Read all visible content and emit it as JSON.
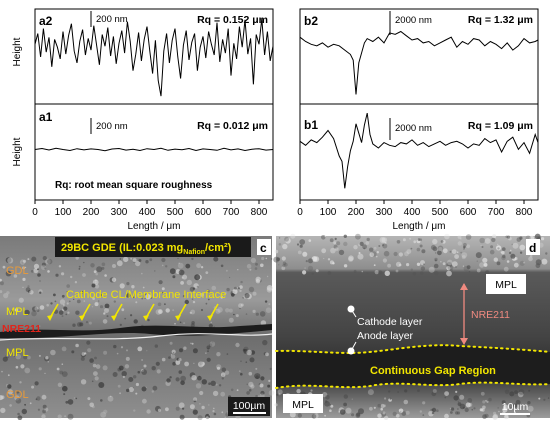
{
  "chart_data": [
    {
      "type": "line",
      "panels": [
        {
          "label": "a2",
          "rq": "Rq = 0.152 μm",
          "scale_bar": "200 nm",
          "x": [
            0,
            10,
            20,
            30,
            40,
            50,
            60,
            70,
            80,
            90,
            100,
            110,
            120,
            130,
            140,
            150,
            160,
            170,
            180,
            190,
            200,
            210,
            220,
            230,
            240,
            250,
            260,
            270,
            280,
            290,
            300,
            310,
            320,
            330,
            340,
            350,
            360,
            370,
            380,
            390,
            400,
            410,
            420,
            430,
            440,
            450,
            460,
            470,
            480,
            490,
            500,
            510,
            520,
            530,
            540,
            550,
            560,
            570,
            580,
            590,
            600,
            610,
            620,
            630,
            640,
            650,
            660,
            670,
            680,
            690,
            700,
            710,
            720,
            730,
            740,
            750,
            760,
            770,
            780,
            790,
            800,
            810,
            820,
            830,
            840,
            850
          ],
          "y": [
            0.05,
            0.16,
            -0.08,
            0.21,
            -0.03,
            0.12,
            -0.18,
            0.1,
            0.02,
            -0.1,
            0.18,
            -0.05,
            0.14,
            0.26,
            -0.02,
            -0.14,
            0.08,
            0.2,
            -0.06,
            0.11,
            -0.01,
            0.24,
            0.04,
            -0.16,
            0.15,
            0.03,
            0.22,
            -0.07,
            0.13,
            -0.15,
            0.06,
            0.19,
            -0.04,
            0.28,
            0.08,
            -0.22,
            -0.05,
            0.17,
            -0.12,
            0.1,
            0.23,
            -0.02,
            -0.25,
            0.09,
            -0.32,
            -0.48,
            -0.02,
            0.16,
            -0.14,
            0.09,
            0.21,
            -0.08,
            -0.3,
            0.04,
            0.19,
            -0.11,
            0.07,
            0.16,
            -0.22,
            0.02,
            0.13,
            -0.09,
            0.18,
            0.05,
            -0.06,
            0.27,
            -0.13,
            0.1,
            -0.04,
            0.21,
            -0.27,
            0.06,
            -0.1,
            0.23,
            0.02,
            0.3,
            -0.05,
            0.11,
            -0.36,
            0.15,
            0.05,
            0.31,
            -0.06,
            0.18,
            -0.12,
            0.03
          ],
          "ylim": [
            -0.55,
            0.4
          ]
        },
        {
          "label": "a1",
          "rq": "Rq = 0.012 μm",
          "scale_bar": "200 nm",
          "note": "Rq: root mean square roughness",
          "x": [
            0,
            25,
            50,
            75,
            100,
            125,
            150,
            175,
            200,
            225,
            250,
            275,
            300,
            325,
            350,
            375,
            400,
            425,
            450,
            475,
            500,
            525,
            550,
            575,
            600,
            625,
            650,
            675,
            700,
            725,
            750,
            775,
            800,
            825,
            850
          ],
          "y": [
            0.0,
            0.01,
            -0.005,
            0.012,
            0.0,
            -0.01,
            0.008,
            -0.004,
            0.006,
            0.0,
            -0.012,
            0.005,
            0.01,
            -0.006,
            0.003,
            -0.01,
            0.008,
            0.0,
            0.012,
            -0.008,
            0.004,
            -0.002,
            0.01,
            -0.01,
            0.006,
            0.0,
            -0.008,
            0.012,
            -0.004,
            0.006,
            -0.01,
            0.003,
            0.008,
            -0.006,
            0.0
          ],
          "ylim": [
            -0.5,
            0.45
          ]
        }
      ],
      "xlabel": "Length / μm",
      "ylabel": "Height",
      "xlim": [
        0,
        850
      ],
      "xticks": [
        "0",
        "100",
        "200",
        "300",
        "400",
        "500",
        "600",
        "700",
        "800"
      ]
    },
    {
      "type": "line",
      "panels": [
        {
          "label": "b2",
          "rq": "Rq = 1.32 μm",
          "scale_bar": "2000 nm",
          "x": [
            0,
            20,
            40,
            60,
            80,
            100,
            120,
            140,
            160,
            180,
            190,
            200,
            210,
            220,
            230,
            240,
            260,
            280,
            300,
            320,
            340,
            360,
            380,
            400,
            420,
            440,
            460,
            480,
            500,
            520,
            540,
            560,
            580,
            600,
            620,
            640,
            660,
            680,
            700,
            720,
            740,
            760,
            780,
            800,
            820,
            840,
            850
          ],
          "y": [
            0.6,
            0.3,
            0.1,
            0.0,
            0.2,
            -0.1,
            0.1,
            0.0,
            -0.3,
            -0.6,
            -1.0,
            -3.4,
            -1.2,
            -0.5,
            0.2,
            0.5,
            0.3,
            0.6,
            0.2,
            0.9,
            0.8,
            1.0,
            0.7,
            0.4,
            0.5,
            0.2,
            0.3,
            0.0,
            0.2,
            0.4,
            0.6,
            -0.1,
            0.3,
            0.1,
            0.5,
            0.4,
            0.0,
            0.3,
            0.1,
            -0.2,
            0.2,
            -0.3,
            0.0,
            0.5,
            0.2,
            0.3,
            0.4
          ],
          "ylim": [
            -4.0,
            2.5
          ]
        },
        {
          "label": "b1",
          "rq": "Rq = 1.09 μm",
          "scale_bar": "2000 nm",
          "x": [
            0,
            20,
            40,
            60,
            80,
            100,
            120,
            140,
            150,
            160,
            170,
            180,
            190,
            200,
            210,
            220,
            230,
            240,
            250,
            260,
            280,
            300,
            320,
            340,
            360,
            380,
            400,
            420,
            440,
            460,
            480,
            500,
            520,
            540,
            560,
            580,
            600,
            620,
            640,
            660,
            680,
            700,
            720,
            740,
            760,
            780,
            800,
            820,
            840,
            850
          ],
          "y": [
            0.3,
            0.0,
            0.4,
            0.2,
            0.6,
            1.1,
            0.5,
            -0.8,
            -1.2,
            -3.2,
            -1.6,
            -0.4,
            0.3,
            1.6,
            0.9,
            0.2,
            1.5,
            2.4,
            0.8,
            0.1,
            -0.2,
            0.2,
            0.0,
            -0.1,
            0.2,
            0.1,
            0.4,
            0.0,
            0.2,
            -0.1,
            0.1,
            0.3,
            0.0,
            0.2,
            0.3,
            0.1,
            -0.2,
            0.1,
            0.0,
            0.5,
            0.2,
            0.4,
            -0.5,
            0.3,
            0.6,
            -0.3,
            0.2,
            -0.6,
            0.8,
            0.2
          ],
          "ylim": [
            -4.0,
            3.0
          ]
        }
      ],
      "xlabel": "Length / μm",
      "xlim": [
        0,
        850
      ],
      "xticks": [
        "0",
        "100",
        "200",
        "300",
        "400",
        "500",
        "600",
        "700",
        "800"
      ]
    }
  ],
  "micrographs": {
    "c": {
      "panel_label": "c",
      "header": "29BC GDE (IL:0.023 mg",
      "header_sub": "Nafion",
      "header_tail": "/cm²)",
      "labels": [
        "GDL",
        "MPL",
        "Cathode CL/Membrane Interface",
        "NRE211",
        "MPL",
        "GDL"
      ],
      "scale_bar": "100µm"
    },
    "d": {
      "panel_label": "d",
      "labels": [
        "MPL",
        "Cathode layer",
        "NRE211",
        "Anode layer",
        "Continuous Gap Region",
        "MPL"
      ],
      "scale_bar": "10µm"
    }
  },
  "colors": {
    "line": "#000000",
    "annotation_yellow": "#f2e600",
    "nre_red": "#e0241b",
    "nre_pink": "#f08a80",
    "header_box": "#1a1a1a"
  }
}
